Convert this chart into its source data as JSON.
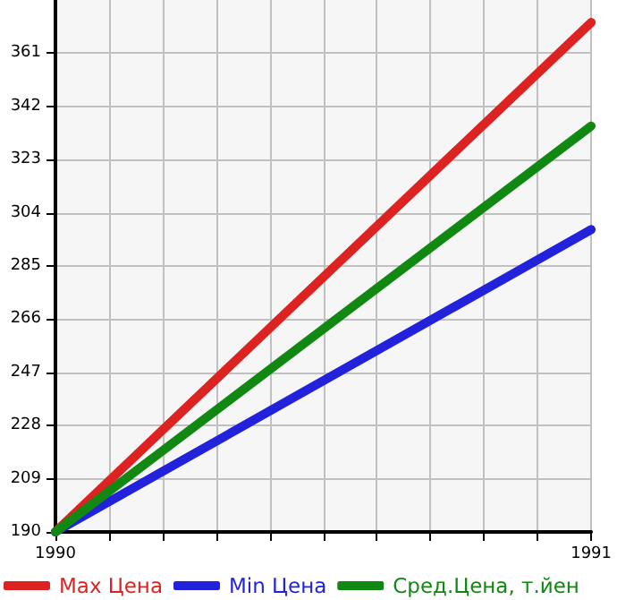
{
  "chart_data": {
    "type": "line",
    "x": [
      1990,
      1991
    ],
    "series": [
      {
        "name": "Max Цена",
        "color": "#dd2222",
        "values": [
          190,
          372
        ]
      },
      {
        "name": "Min Цена",
        "color": "#2222dd",
        "values": [
          190,
          298
        ]
      },
      {
        "name": "Сред.Цена, т.йен",
        "color": "#118811",
        "values": [
          190,
          335
        ]
      }
    ],
    "xlim": [
      1990,
      1991
    ],
    "xticks": [
      1990,
      {
        "value": 1990.1,
        "label": null
      },
      {
        "value": 1990.2,
        "label": null
      },
      {
        "value": 1990.3,
        "label": null
      },
      {
        "value": 1990.4,
        "label": null
      },
      {
        "value": 1990.5,
        "label": null
      },
      {
        "value": 1990.6,
        "label": null
      },
      {
        "value": 1990.7,
        "label": null
      },
      {
        "value": 1990.8,
        "label": null
      },
      {
        "value": 1990.9,
        "label": null
      },
      1991
    ],
    "ylim": [
      190,
      380
    ],
    "yticks": [
      190,
      209,
      228,
      247,
      266,
      285,
      304,
      323,
      342,
      361
    ],
    "grid": true,
    "legend": "bottom",
    "marker": "none",
    "line_style": "solid"
  }
}
